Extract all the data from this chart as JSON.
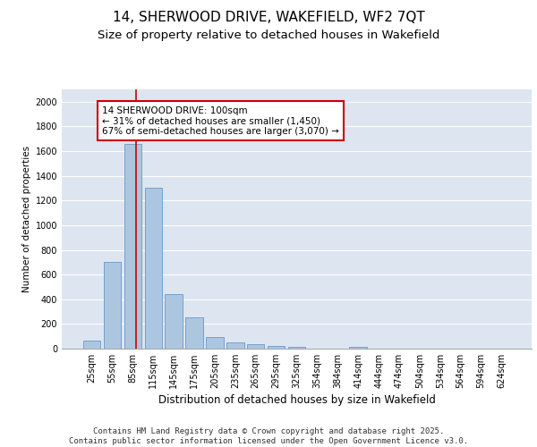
{
  "title_line1": "14, SHERWOOD DRIVE, WAKEFIELD, WF2 7QT",
  "title_line2": "Size of property relative to detached houses in Wakefield",
  "xlabel": "Distribution of detached houses by size in Wakefield",
  "ylabel": "Number of detached properties",
  "categories": [
    "25sqm",
    "55sqm",
    "85sqm",
    "115sqm",
    "145sqm",
    "175sqm",
    "205sqm",
    "235sqm",
    "265sqm",
    "295sqm",
    "325sqm",
    "354sqm",
    "384sqm",
    "414sqm",
    "444sqm",
    "474sqm",
    "504sqm",
    "534sqm",
    "564sqm",
    "594sqm",
    "624sqm"
  ],
  "values": [
    65,
    700,
    1660,
    1300,
    445,
    255,
    95,
    48,
    35,
    22,
    18,
    0,
    0,
    18,
    0,
    0,
    0,
    0,
    0,
    0,
    0
  ],
  "bar_color": "#adc6e0",
  "bar_edge_color": "#6699cc",
  "vline_color": "#cc0000",
  "vline_x": 2.17,
  "annotation_box_text": "14 SHERWOOD DRIVE: 100sqm\n← 31% of detached houses are smaller (1,450)\n67% of semi-detached houses are larger (3,070) →",
  "annotation_box_color": "#cc0000",
  "ylim": [
    0,
    2100
  ],
  "yticks": [
    0,
    200,
    400,
    600,
    800,
    1000,
    1200,
    1400,
    1600,
    1800,
    2000
  ],
  "background_color": "#dde5f0",
  "grid_color": "#ffffff",
  "footer_text": "Contains HM Land Registry data © Crown copyright and database right 2025.\nContains public sector information licensed under the Open Government Licence v3.0.",
  "title_fontsize": 11,
  "subtitle_fontsize": 9.5,
  "xlabel_fontsize": 8.5,
  "ylabel_fontsize": 7.5,
  "tick_fontsize": 7,
  "annotation_fontsize": 7.5,
  "footer_fontsize": 6.5
}
